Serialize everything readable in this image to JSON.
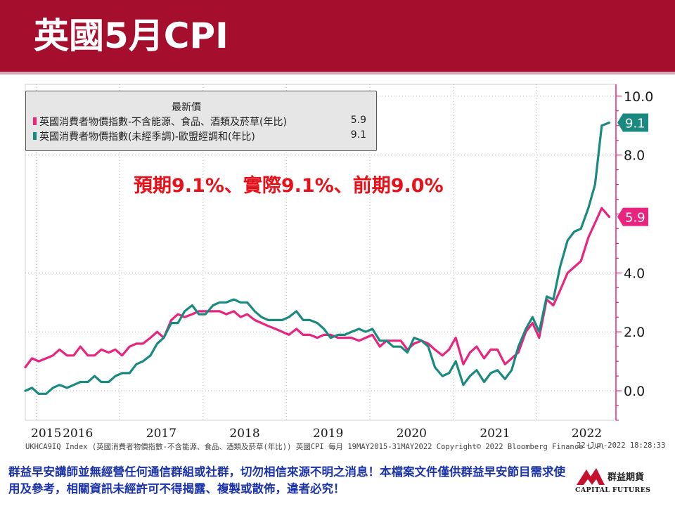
{
  "header": {
    "title": "英國5月CPI"
  },
  "annotation": "預期9.1%、實際9.1%、前期9.0%",
  "chart_data": {
    "type": "line",
    "title": "",
    "legend": {
      "title": "最新價",
      "placement": "top-left"
    },
    "x_ticks": [
      "2015",
      "2016",
      "2017",
      "2018",
      "2019",
      "2020",
      "2021",
      "2022"
    ],
    "y_ticks": [
      "0.0",
      "2.0",
      "4.0",
      "8.0",
      "10.0"
    ],
    "ylim": [
      -1.0,
      10.4
    ],
    "xlim": [
      2015.37,
      2022.45
    ],
    "gridlines": true,
    "series": [
      {
        "name": "英國消費者物價指數-不含能源、食品、酒類及菸草(年比)",
        "last_value": "5.9",
        "color": "#e8247f",
        "x": [
          2015.37,
          2015.45,
          2015.53,
          2015.62,
          2015.7,
          2015.78,
          2015.87,
          2015.95,
          2016.03,
          2016.12,
          2016.2,
          2016.28,
          2016.37,
          2016.45,
          2016.53,
          2016.62,
          2016.7,
          2016.78,
          2016.87,
          2016.95,
          2017.03,
          2017.12,
          2017.2,
          2017.28,
          2017.37,
          2017.45,
          2017.53,
          2017.62,
          2017.7,
          2017.78,
          2017.87,
          2017.95,
          2018.03,
          2018.12,
          2018.2,
          2018.28,
          2018.37,
          2018.45,
          2018.53,
          2018.62,
          2018.7,
          2018.78,
          2018.87,
          2018.95,
          2019.03,
          2019.12,
          2019.2,
          2019.28,
          2019.37,
          2019.45,
          2019.53,
          2019.62,
          2019.7,
          2019.78,
          2019.87,
          2019.95,
          2020.03,
          2020.12,
          2020.2,
          2020.28,
          2020.37,
          2020.45,
          2020.53,
          2020.62,
          2020.7,
          2020.78,
          2020.87,
          2020.95,
          2021.03,
          2021.12,
          2021.2,
          2021.28,
          2021.37,
          2021.45,
          2021.53,
          2021.62,
          2021.7,
          2021.78,
          2021.87,
          2021.95,
          2022.03,
          2022.12,
          2022.2,
          2022.28,
          2022.37
        ],
        "values": [
          0.8,
          1.1,
          1.0,
          1.1,
          1.2,
          1.4,
          1.2,
          1.2,
          1.5,
          1.2,
          1.2,
          1.4,
          1.3,
          1.4,
          1.2,
          1.5,
          1.6,
          1.6,
          1.8,
          2.0,
          1.8,
          2.4,
          2.6,
          2.5,
          2.6,
          2.7,
          2.7,
          2.7,
          2.7,
          2.6,
          2.7,
          2.5,
          2.6,
          2.4,
          2.3,
          2.2,
          2.1,
          2.0,
          1.9,
          2.1,
          1.9,
          1.9,
          1.8,
          1.9,
          1.9,
          1.8,
          1.8,
          1.8,
          1.7,
          1.8,
          1.9,
          1.5,
          1.7,
          1.7,
          1.7,
          1.4,
          1.6,
          1.7,
          1.6,
          1.4,
          1.2,
          1.4,
          1.8,
          0.9,
          1.3,
          1.5,
          1.1,
          1.4,
          1.4,
          0.9,
          1.1,
          1.3,
          2.0,
          2.3,
          1.8,
          3.1,
          2.9,
          3.4,
          4.0,
          4.2,
          4.4,
          5.2,
          5.7,
          6.2,
          5.9
        ]
      },
      {
        "name": "英國消費者物價指數(未經季調)-歐盟經調和(年比)",
        "last_value": "9.1",
        "color": "#1a8a80",
        "x": [
          2015.37,
          2015.45,
          2015.53,
          2015.62,
          2015.7,
          2015.78,
          2015.87,
          2015.95,
          2016.03,
          2016.12,
          2016.2,
          2016.28,
          2016.37,
          2016.45,
          2016.53,
          2016.62,
          2016.7,
          2016.78,
          2016.87,
          2016.95,
          2017.03,
          2017.12,
          2017.2,
          2017.28,
          2017.37,
          2017.45,
          2017.53,
          2017.62,
          2017.7,
          2017.78,
          2017.87,
          2017.95,
          2018.03,
          2018.12,
          2018.2,
          2018.28,
          2018.37,
          2018.45,
          2018.53,
          2018.62,
          2018.7,
          2018.78,
          2018.87,
          2018.95,
          2019.03,
          2019.12,
          2019.2,
          2019.28,
          2019.37,
          2019.45,
          2019.53,
          2019.62,
          2019.7,
          2019.78,
          2019.87,
          2019.95,
          2020.03,
          2020.12,
          2020.2,
          2020.28,
          2020.37,
          2020.45,
          2020.53,
          2020.62,
          2020.7,
          2020.78,
          2020.87,
          2020.95,
          2021.03,
          2021.12,
          2021.2,
          2021.28,
          2021.37,
          2021.45,
          2021.53,
          2021.62,
          2021.7,
          2021.78,
          2021.87,
          2021.95,
          2022.03,
          2022.12,
          2022.2,
          2022.28,
          2022.37
        ],
        "values": [
          0.0,
          0.1,
          -0.1,
          -0.1,
          0.1,
          0.2,
          0.1,
          0.2,
          0.3,
          0.3,
          0.5,
          0.3,
          0.3,
          0.5,
          0.6,
          0.6,
          0.9,
          1.0,
          1.2,
          1.6,
          1.8,
          2.3,
          2.3,
          2.7,
          2.9,
          2.6,
          2.6,
          2.9,
          3.0,
          3.0,
          3.1,
          3.0,
          3.0,
          2.7,
          2.5,
          2.4,
          2.4,
          2.4,
          2.5,
          2.7,
          2.4,
          2.4,
          2.3,
          2.1,
          1.8,
          1.9,
          1.9,
          2.0,
          2.1,
          2.0,
          2.1,
          1.7,
          1.7,
          1.5,
          1.5,
          1.3,
          1.8,
          1.7,
          1.5,
          0.8,
          0.5,
          0.6,
          1.0,
          0.2,
          0.5,
          0.7,
          0.3,
          0.6,
          0.7,
          0.4,
          0.7,
          1.5,
          2.1,
          2.5,
          2.0,
          3.2,
          3.1,
          4.2,
          5.1,
          5.4,
          5.5,
          6.2,
          7.0,
          9.0,
          9.1
        ]
      }
    ]
  },
  "source": "UKHCA9IQ Index (英國消費者物價指數-不含能源、食品、酒類及菸草(年比)) 英國CPI  每月 19MAY2015-31MAY2022        Copyright© 2022 Bloomberg Finance L.P.",
  "updated": "22-Jun-2022 18:28:33",
  "disclaimer": "群益早安講師並無經營任何通信群組或社群，切勿相信來源不明之消息！本檔案文件僅供群益早安節目需求使用及參考，相關資訊未經許可不得揭露、複製或散佈，違者必究！",
  "logo": {
    "name": "群益期貨",
    "en": "CAPITAL FUTURES",
    "color": "#c4122f"
  }
}
